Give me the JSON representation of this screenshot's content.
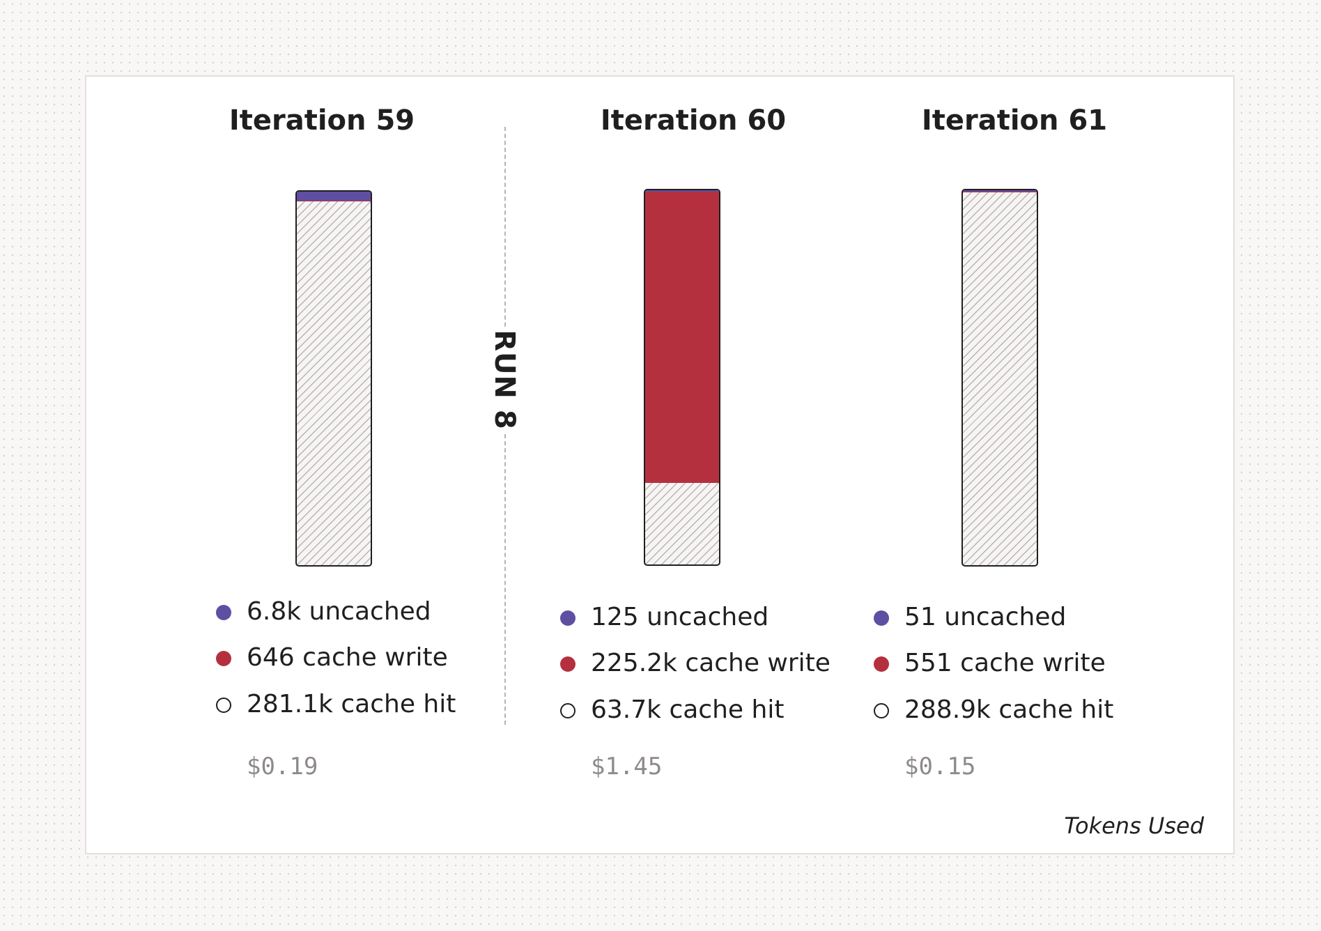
{
  "chart_data": {
    "type": "bar",
    "stacked": true,
    "divider_label": "RUN 8",
    "footer": "Tokens Used",
    "colors": {
      "uncached": "#5e4fa2",
      "cache_write": "#b5303f",
      "cache_hit": "hatched"
    },
    "iterations": [
      {
        "title": "Iteration 59",
        "segments": {
          "uncached": 6.8,
          "cache_write": 0.646,
          "cache_hit": 281.1
        },
        "legend": [
          "6.8k uncached",
          "646 cache write",
          "281.1k cache hit"
        ],
        "cost": "$0.19"
      },
      {
        "title": "Iteration 60",
        "segments": {
          "uncached": 0.125,
          "cache_write": 225.2,
          "cache_hit": 63.7
        },
        "legend": [
          "125 uncached",
          "225.2k cache write",
          "63.7k cache hit"
        ],
        "cost": "$1.45"
      },
      {
        "title": "Iteration 61",
        "segments": {
          "uncached": 0.051,
          "cache_write": 0.551,
          "cache_hit": 288.9
        },
        "legend": [
          "51 uncached",
          "551 cache write",
          "288.9k cache hit"
        ],
        "cost": "$0.15"
      }
    ]
  }
}
